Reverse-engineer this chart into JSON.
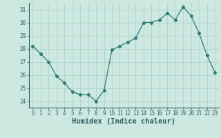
{
  "x": [
    0,
    1,
    2,
    3,
    4,
    5,
    6,
    7,
    8,
    9,
    10,
    11,
    12,
    13,
    14,
    15,
    16,
    17,
    18,
    19,
    20,
    21,
    22,
    23
  ],
  "y": [
    28.2,
    27.6,
    27.0,
    25.9,
    25.4,
    24.7,
    24.5,
    24.5,
    24.0,
    24.8,
    27.9,
    28.2,
    28.5,
    28.8,
    30.0,
    30.0,
    30.2,
    30.7,
    30.2,
    31.2,
    30.5,
    29.2,
    27.5,
    26.2
  ],
  "line_color": "#2e7d6e",
  "marker": "D",
  "marker_size": 2.2,
  "bg_color": "#cce8e0",
  "grid_color": "#aacfca",
  "xlabel": "Humidex (Indice chaleur)",
  "ylim": [
    23.5,
    31.5
  ],
  "xlim": [
    -0.5,
    23.5
  ],
  "yticks": [
    24,
    25,
    26,
    27,
    28,
    29,
    30,
    31
  ],
  "xticks": [
    0,
    1,
    2,
    3,
    4,
    5,
    6,
    7,
    8,
    9,
    10,
    11,
    12,
    13,
    14,
    15,
    16,
    17,
    18,
    19,
    20,
    21,
    22,
    23
  ],
  "tick_fontsize": 5.5,
  "xlabel_fontsize": 7.5,
  "label_color": "#2e6060"
}
